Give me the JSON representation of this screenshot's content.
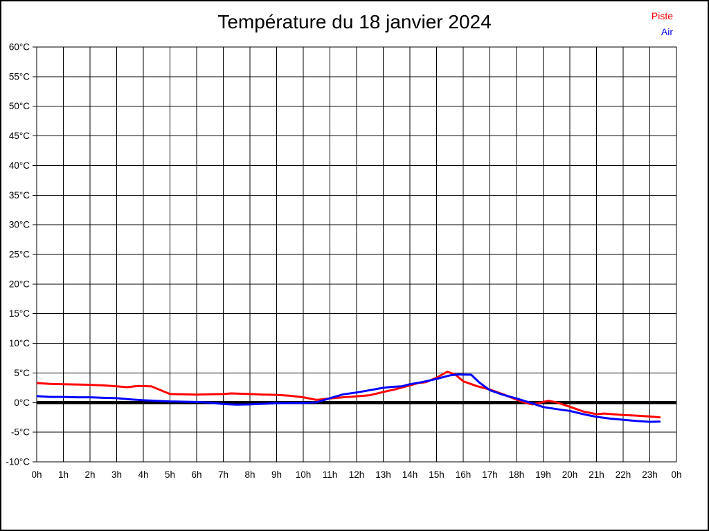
{
  "chart": {
    "title": "Température du 18 janvier 2024"
  },
  "chart_data": {
    "type": "line",
    "title": "Température du 18 janvier 2024",
    "xlabel": "",
    "ylabel": "",
    "y_unit": "°C",
    "x_unit": "hour of day",
    "ylim": [
      -10,
      60
    ],
    "y_step": 5,
    "xlim": [
      0,
      24
    ],
    "x_step_hours": 1,
    "grid": true,
    "zero_line": {
      "value": 0,
      "thick": true,
      "color": "#000000"
    },
    "legend_position": "top-right",
    "y_tick_labels": [
      "60°C",
      "55°C",
      "50°C",
      "45°C",
      "40°C",
      "35°C",
      "30°C",
      "25°C",
      "20°C",
      "15°C",
      "10°C",
      "5°C",
      "0°C",
      "-5°C",
      "-10°C"
    ],
    "x_tick_labels": [
      "0h",
      "1h",
      "2h",
      "3h",
      "4h",
      "5h",
      "6h",
      "7h",
      "8h",
      "9h",
      "10h",
      "11h",
      "12h",
      "13h",
      "14h",
      "15h",
      "16h",
      "17h",
      "18h",
      "19h",
      "20h",
      "21h",
      "22h",
      "23h",
      "0h"
    ],
    "series": [
      {
        "name": "Piste",
        "color": "#ff0000",
        "points": [
          [
            0,
            3.3
          ],
          [
            0.5,
            3.15
          ],
          [
            1,
            3.1
          ],
          [
            1.5,
            3.05
          ],
          [
            2,
            3.0
          ],
          [
            2.5,
            2.9
          ],
          [
            3,
            2.75
          ],
          [
            3.4,
            2.6
          ],
          [
            3.8,
            2.8
          ],
          [
            4.3,
            2.75
          ],
          [
            5,
            1.45
          ],
          [
            5.5,
            1.4
          ],
          [
            6,
            1.35
          ],
          [
            6.5,
            1.4
          ],
          [
            7,
            1.45
          ],
          [
            7.3,
            1.55
          ],
          [
            7.6,
            1.5
          ],
          [
            8,
            1.45
          ],
          [
            8.5,
            1.35
          ],
          [
            9,
            1.3
          ],
          [
            9.5,
            1.15
          ],
          [
            10,
            0.9
          ],
          [
            10.5,
            0.45
          ],
          [
            11,
            0.7
          ],
          [
            11.5,
            0.9
          ],
          [
            12,
            1.05
          ],
          [
            12.5,
            1.25
          ],
          [
            13,
            1.8
          ],
          [
            13.5,
            2.3
          ],
          [
            14,
            2.9
          ],
          [
            14.3,
            3.3
          ],
          [
            14.6,
            3.45
          ],
          [
            15,
            4.2
          ],
          [
            15.4,
            5.2
          ],
          [
            15.7,
            4.75
          ],
          [
            16,
            3.6
          ],
          [
            16.5,
            2.8
          ],
          [
            17,
            2.2
          ],
          [
            17.5,
            1.4
          ],
          [
            18,
            0.5
          ],
          [
            18.3,
            0
          ],
          [
            18.6,
            -0.3
          ],
          [
            19,
            0.1
          ],
          [
            19.2,
            0.3
          ],
          [
            19.5,
            0.05
          ],
          [
            20,
            -0.7
          ],
          [
            20.5,
            -1.5
          ],
          [
            21,
            -1.95
          ],
          [
            21.3,
            -1.85
          ],
          [
            22,
            -2.1
          ],
          [
            22.5,
            -2.2
          ],
          [
            23,
            -2.35
          ],
          [
            23.4,
            -2.5
          ]
        ]
      },
      {
        "name": "Air",
        "color": "#0000ff",
        "points": [
          [
            0,
            1.1
          ],
          [
            0.5,
            0.95
          ],
          [
            1,
            0.95
          ],
          [
            1.5,
            0.9
          ],
          [
            2,
            0.9
          ],
          [
            2.5,
            0.8
          ],
          [
            3,
            0.75
          ],
          [
            3.5,
            0.55
          ],
          [
            4,
            0.4
          ],
          [
            4.5,
            0.3
          ],
          [
            5,
            0.2
          ],
          [
            5.5,
            0.15
          ],
          [
            6,
            0.1
          ],
          [
            6.5,
            0
          ],
          [
            7,
            -0.25
          ],
          [
            7.5,
            -0.35
          ],
          [
            8,
            -0.3
          ],
          [
            8.5,
            -0.2
          ],
          [
            9,
            -0.1
          ],
          [
            9.5,
            -0.05
          ],
          [
            10,
            -0.05
          ],
          [
            10.5,
            0.05
          ],
          [
            11,
            0.75
          ],
          [
            11.5,
            1.4
          ],
          [
            12,
            1.7
          ],
          [
            12.5,
            2.1
          ],
          [
            13,
            2.5
          ],
          [
            13.3,
            2.65
          ],
          [
            13.7,
            2.75
          ],
          [
            14,
            3.1
          ],
          [
            14.5,
            3.5
          ],
          [
            15,
            4.0
          ],
          [
            15.5,
            4.6
          ],
          [
            15.8,
            4.75
          ],
          [
            16.3,
            4.7
          ],
          [
            16.6,
            3.4
          ],
          [
            17,
            2.1
          ],
          [
            17.5,
            1.3
          ],
          [
            18,
            0.7
          ],
          [
            18.5,
            0
          ],
          [
            19,
            -0.75
          ],
          [
            19.5,
            -1.1
          ],
          [
            20,
            -1.4
          ],
          [
            20.5,
            -1.95
          ],
          [
            21,
            -2.4
          ],
          [
            21.5,
            -2.7
          ],
          [
            22,
            -2.9
          ],
          [
            22.5,
            -3.1
          ],
          [
            23,
            -3.25
          ],
          [
            23.4,
            -3.2
          ]
        ]
      }
    ]
  }
}
